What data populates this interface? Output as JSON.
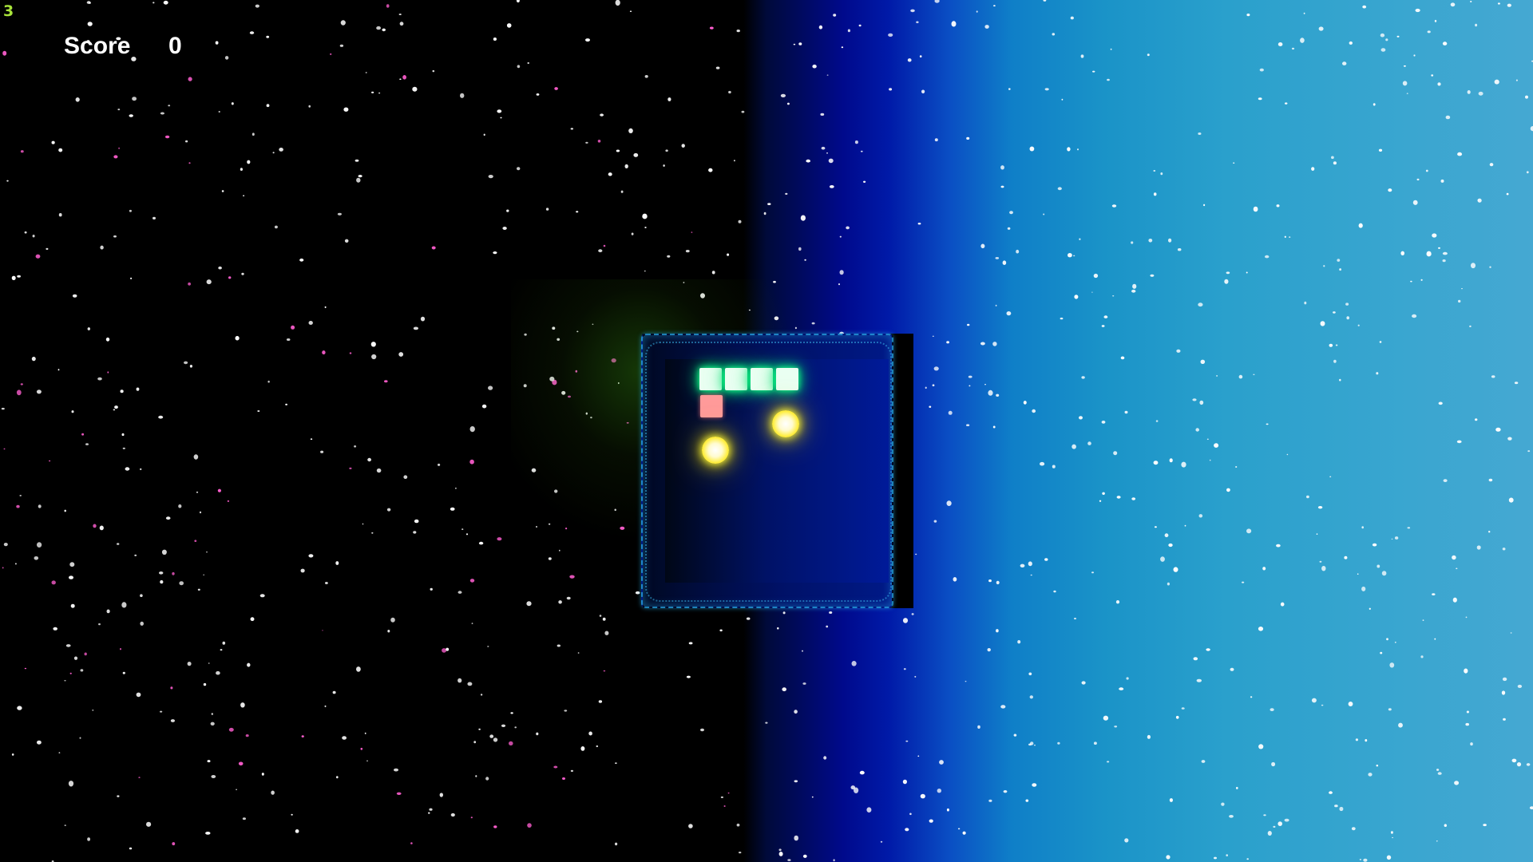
{
  "hud": {
    "fps": "3",
    "score_label": "Score",
    "score_value": "0"
  },
  "colors": {
    "snake": "#eafff2",
    "snake_glow": "#00e070",
    "food": "#ff9a9a",
    "orb": "#ffee40",
    "arena_border": "#28aae6",
    "hud_text": "#ffffff",
    "fps_text": "#a7e23a"
  },
  "game": {
    "snake_length": 4,
    "orb_count": 2,
    "food_count": 1
  }
}
